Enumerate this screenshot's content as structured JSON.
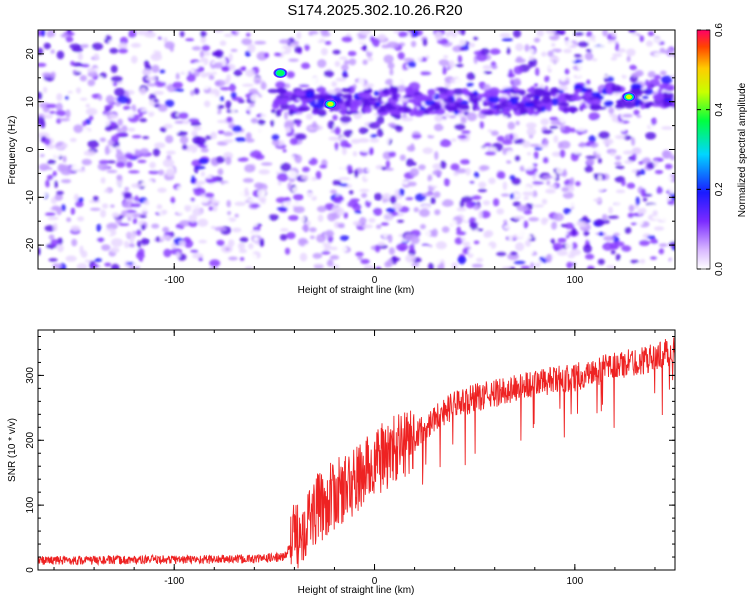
{
  "title": "S174.2025.302.10.26.R20",
  "chart_data": [
    {
      "type": "heatmap",
      "xlabel": "Height of straight line (km)",
      "ylabel": "Frequency (Hz)",
      "xlim": [
        -168,
        150
      ],
      "ylim": [
        -25,
        25
      ],
      "xticks": [
        -100,
        0,
        100
      ],
      "yticks": [
        -20,
        -10,
        0,
        10,
        20
      ],
      "colorbar": {
        "label": "Normalized spectral amplitude",
        "range": [
          0.0,
          0.6
        ],
        "ticks": [
          0.0,
          0.2,
          0.4,
          0.6
        ]
      },
      "features": [
        {
          "name": "signal-band",
          "x_range": [
            -52,
            150
          ],
          "frequency_hz": 10
        },
        {
          "name": "peak",
          "x": -47,
          "frequency_hz": 16,
          "amplitude": 0.45
        },
        {
          "name": "peak",
          "x": -22,
          "frequency_hz": 9.5,
          "amplitude": 0.5
        },
        {
          "name": "peak",
          "x": 127,
          "frequency_hz": 11,
          "amplitude": 0.5
        },
        {
          "name": "vertical-gap",
          "x": -51
        }
      ]
    },
    {
      "type": "line",
      "xlabel": "Height of straight line (km)",
      "ylabel": "SNR (10 * v/v)",
      "xlim": [
        -168,
        150
      ],
      "ylim": [
        0,
        370
      ],
      "xticks": [
        -100,
        0,
        100
      ],
      "yticks": [
        0,
        100,
        200,
        300
      ],
      "series": [
        {
          "name": "SNR",
          "color": "#ee2222",
          "x": [
            -168,
            -140,
            -100,
            -60,
            -45,
            -40,
            -30,
            -20,
            -10,
            0,
            10,
            20,
            30,
            40,
            50,
            60,
            70,
            80,
            90,
            100,
            110,
            120,
            130,
            140,
            150
          ],
          "y": [
            15,
            15,
            16,
            17,
            20,
            50,
            90,
            115,
            135,
            165,
            185,
            205,
            235,
            255,
            265,
            272,
            280,
            288,
            292,
            297,
            305,
            315,
            320,
            328,
            340
          ]
        }
      ]
    }
  ]
}
